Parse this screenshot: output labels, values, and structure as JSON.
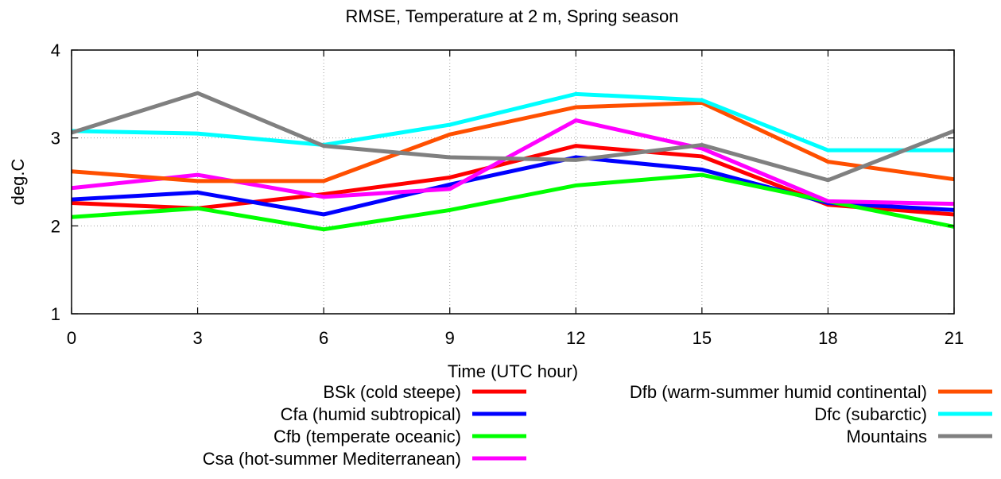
{
  "chart_data": {
    "type": "line",
    "title": "RMSE, Temperature at 2 m, Spring season",
    "xlabel": "Time (UTC hour)",
    "ylabel": "deg.C",
    "x": [
      0,
      3,
      6,
      9,
      12,
      15,
      18,
      21
    ],
    "xlim": [
      0,
      21
    ],
    "ylim": [
      1,
      4
    ],
    "xticks": [
      "0",
      "3",
      "6",
      "9",
      "12",
      "15",
      "18",
      "21"
    ],
    "yticks": [
      "1",
      "2",
      "3",
      "4"
    ],
    "grid": true,
    "legend_position": "bottom",
    "series": [
      {
        "name": "BSk (cold steepe)",
        "color": "#ff0000",
        "values": [
          2.26,
          2.2,
          2.36,
          2.55,
          2.91,
          2.79,
          2.24,
          2.13
        ]
      },
      {
        "name": "Cfa (humid subtropical)",
        "color": "#0000ff",
        "values": [
          2.3,
          2.38,
          2.13,
          2.47,
          2.78,
          2.64,
          2.26,
          2.18
        ]
      },
      {
        "name": "Cfb (temperate oceanic)",
        "color": "#00ff00",
        "values": [
          2.1,
          2.2,
          1.96,
          2.18,
          2.46,
          2.58,
          2.28,
          1.99
        ]
      },
      {
        "name": "Csa (hot-summer Mediterranean)",
        "color": "#ff00ff",
        "values": [
          2.43,
          2.58,
          2.33,
          2.42,
          3.2,
          2.88,
          2.28,
          2.25
        ]
      },
      {
        "name": "Dfb (warm-summer humid continental)",
        "color": "#ff4f00",
        "values": [
          2.62,
          2.51,
          2.51,
          3.04,
          3.35,
          3.4,
          2.73,
          2.53
        ]
      },
      {
        "name": "Dfc (subarctic)",
        "color": "#00ffff",
        "values": [
          3.08,
          3.05,
          2.92,
          3.15,
          3.5,
          3.43,
          2.86,
          2.86
        ]
      },
      {
        "name": "Mountains",
        "color": "#808080",
        "values": [
          3.06,
          3.51,
          2.91,
          2.78,
          2.75,
          2.92,
          2.52,
          3.08
        ]
      }
    ]
  }
}
